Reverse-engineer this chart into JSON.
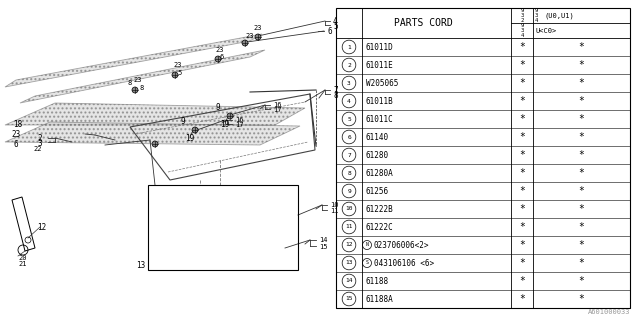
{
  "parts_cord_header": "PARTS CORD",
  "rows": [
    {
      "num": "1",
      "code": "61011D",
      "c1": "*",
      "c2": "*"
    },
    {
      "num": "2",
      "code": "61011E",
      "c1": "*",
      "c2": "*"
    },
    {
      "num": "3",
      "code": "W205065",
      "c1": "*",
      "c2": "*"
    },
    {
      "num": "4",
      "code": "61011B",
      "c1": "*",
      "c2": "*"
    },
    {
      "num": "5",
      "code": "61011C",
      "c1": "*",
      "c2": "*"
    },
    {
      "num": "6",
      "code": "61140",
      "c1": "*",
      "c2": "*"
    },
    {
      "num": "7",
      "code": "61280",
      "c1": "*",
      "c2": "*"
    },
    {
      "num": "8",
      "code": "61280A",
      "c1": "*",
      "c2": "*"
    },
    {
      "num": "9",
      "code": "61256",
      "c1": "*",
      "c2": "*"
    },
    {
      "num": "10",
      "code": "61222B",
      "c1": "*",
      "c2": "*"
    },
    {
      "num": "11",
      "code": "61222C",
      "c1": "*",
      "c2": "*"
    },
    {
      "num": "12",
      "code": "N023706006<2>",
      "c1": "*",
      "c2": "*",
      "special": "N"
    },
    {
      "num": "13",
      "code": "S043106106 <6>",
      "c1": "*",
      "c2": "*",
      "special": "S"
    },
    {
      "num": "14",
      "code": "61188",
      "c1": "*",
      "c2": "*"
    },
    {
      "num": "15",
      "code": "61188A",
      "c1": "*",
      "c2": "*"
    }
  ],
  "footnote": "A601000033",
  "bg_color": "#ffffff"
}
